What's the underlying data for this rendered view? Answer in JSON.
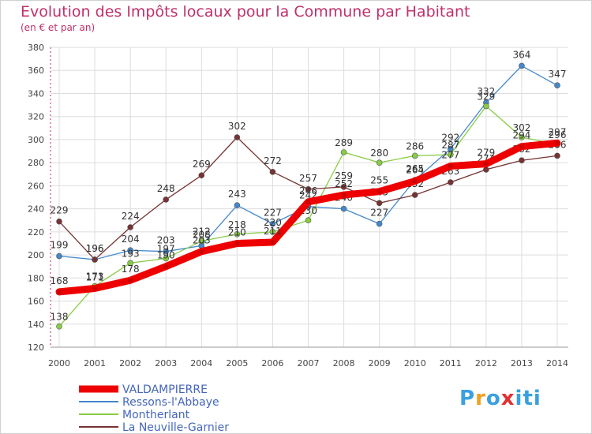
{
  "title": "Evolution des Impôts locaux pour la Commune par Habitant",
  "subtitle": "(en € et par an)",
  "logo": {
    "letters": [
      "P",
      "r",
      "o",
      "x",
      "i",
      "t",
      "i"
    ],
    "colors": [
      "#3aa0e0",
      "#f0a020",
      "#3aa0e0",
      "#e03030",
      "#3aa0e0",
      "#3aa0e0",
      "#3aa0e0"
    ]
  },
  "chart_data": {
    "type": "line",
    "x": [
      2000,
      2001,
      2002,
      2003,
      2004,
      2005,
      2006,
      2007,
      2008,
      2009,
      2010,
      2011,
      2012,
      2013,
      2014
    ],
    "ylim": [
      120,
      380
    ],
    "yticks": [
      120,
      140,
      160,
      180,
      200,
      220,
      240,
      260,
      280,
      300,
      320,
      340,
      360,
      380
    ],
    "grid": true,
    "legend_position": "bottom-left",
    "series": [
      {
        "name": "VALDAMPIERRE",
        "color": "#ee0000",
        "values": [
          168,
          171,
          178,
          190,
          203,
          210,
          211,
          246,
          252,
          255,
          264,
          277,
          279,
          294,
          297
        ]
      },
      {
        "name": "Ressons-l'Abbaye",
        "color": "#4488cc",
        "values": [
          199,
          196,
          204,
          203,
          208,
          243,
          227,
          242,
          240,
          227,
          265,
          292,
          332,
          364,
          347
        ]
      },
      {
        "name": "Montherlant",
        "color": "#88cc44",
        "values": [
          138,
          173,
          193,
          197,
          212,
          218,
          220,
          230,
          289,
          280,
          286,
          287,
          329,
          302,
          296
        ]
      },
      {
        "name": "La Neuville-Garnier",
        "color": "#773333",
        "values": [
          229,
          196,
          224,
          248,
          269,
          302,
          272,
          257,
          259,
          245,
          252,
          263,
          274,
          282,
          286
        ]
      }
    ]
  }
}
